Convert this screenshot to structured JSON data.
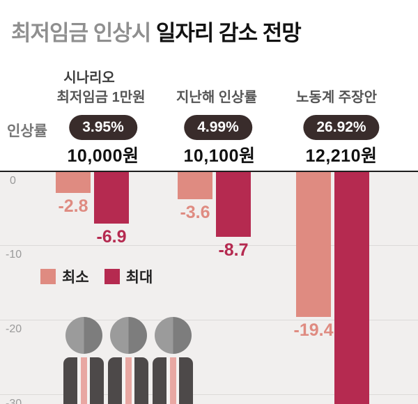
{
  "title": {
    "muted": "최저임금 인상시 ",
    "strong": "일자리 감소 전망"
  },
  "labels": {
    "scenario": "시나리오",
    "rate": "인상률"
  },
  "y_axis": [
    "0",
    "-10",
    "-20",
    "-30"
  ],
  "colors": {
    "min": "#df8b81",
    "max": "#b52a50",
    "badge_bg": "#392c2b",
    "badge_text": "#ffffff",
    "chart_bg": "#f1efee"
  },
  "chart_data": {
    "type": "bar",
    "title": "최저임금 인상시 일자리 감소 전망",
    "categories": [
      "최저임금 1만원",
      "지난해 인상률",
      "노동계 주장안"
    ],
    "rates": [
      "3.95%",
      "4.99%",
      "26.92%"
    ],
    "wages": [
      "10,000원",
      "10,100원",
      "12,210원"
    ],
    "series": [
      {
        "name": "최소",
        "color": "#df8b81",
        "values": [
          -2.8,
          -3.6,
          -19.4
        ]
      },
      {
        "name": "최대",
        "color": "#b52a50",
        "values": [
          -6.9,
          -8.7,
          null
        ]
      }
    ],
    "value_labels": [
      [
        "-2.8",
        "-3.6",
        "-19.4"
      ],
      [
        "-6.9",
        "-8.7",
        ""
      ]
    ],
    "ylim": [
      -32,
      0
    ],
    "yticks": [
      0,
      -10,
      -20,
      -30
    ],
    "grid": true,
    "legend_position": "middle-left",
    "note": "최대 bar for 노동계 주장안 extends beyond the bottom edge of the chart; its value label is not visible"
  }
}
